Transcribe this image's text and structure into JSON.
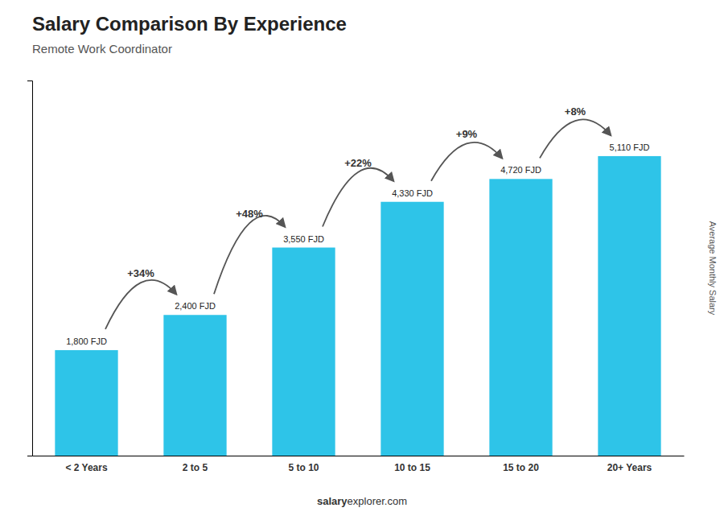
{
  "chart_data": {
    "type": "bar",
    "title": "Salary Comparison By Experience",
    "subtitle": "Remote Work Coordinator",
    "categories": [
      "< 2 Years",
      "2 to 5",
      "5 to 10",
      "10 to 15",
      "15 to 20",
      "20+ Years"
    ],
    "values": [
      1800,
      2400,
      3550,
      4330,
      4720,
      5110
    ],
    "value_labels": [
      "1,800 FJD",
      "2,400 FJD",
      "3,550 FJD",
      "4,330 FJD",
      "4,720 FJD",
      "5,110 FJD"
    ],
    "data_labels": true,
    "annotations": [
      "+34%",
      "+48%",
      "+22%",
      "+9%",
      "+8%"
    ],
    "y_label": "Average Monthly Salary",
    "footer": [
      "salary",
      "explorer.com"
    ],
    "color": "#2ec4e8",
    "ylim": [
      0,
      6400
    ],
    "tick_labels": "x",
    "grid": false
  }
}
